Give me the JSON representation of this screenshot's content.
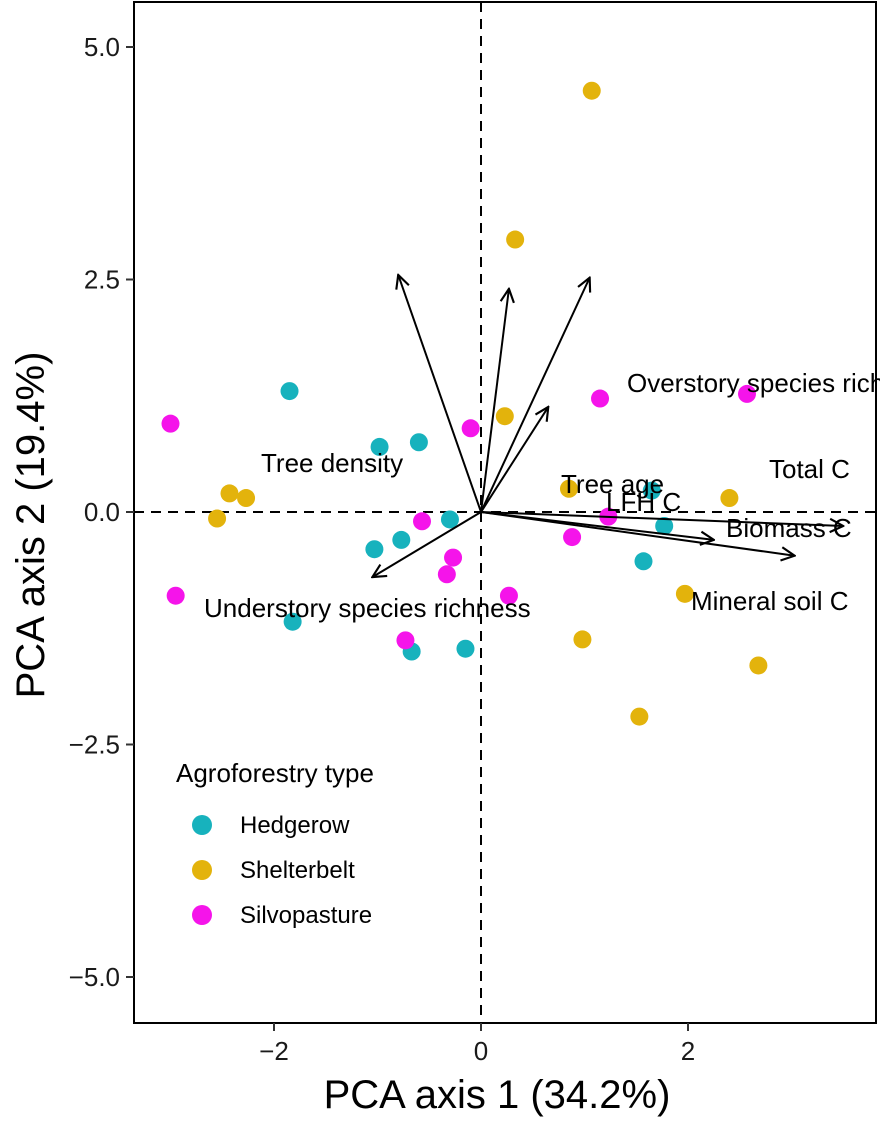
{
  "chart_data": {
    "type": "scatter",
    "subtype": "pca-biplot",
    "xlabel": "PCA axis 1 (34.2%)",
    "ylabel": "PCA axis 2 (19.4%)",
    "xlim": [
      -3.3,
      3.7
    ],
    "ylim": [
      -5.5,
      5.5
    ],
    "xticks": [
      -2,
      0,
      2
    ],
    "xtick_labels": [
      "−2",
      "0",
      "2"
    ],
    "yticks": [
      5.0,
      2.5,
      0.0,
      -2.5,
      -5.0
    ],
    "ytick_labels": [
      "5.0",
      "2.5",
      "0.0",
      "−2.5",
      "−5.0"
    ],
    "grid": false,
    "reference_lines": {
      "x": 0,
      "y": 0,
      "style": "dashed"
    },
    "legend": {
      "title": "Agroforestry type",
      "placement": "bottom-left",
      "entries": [
        {
          "name": "Hedgerow",
          "color": "#17b2bd"
        },
        {
          "name": "Shelterbelt",
          "color": "#e3b30c"
        },
        {
          "name": "Silvopasture",
          "color": "#f514ea"
        }
      ]
    },
    "series": [
      {
        "name": "Hedgerow",
        "color": "#17b2bd",
        "points": [
          {
            "x": -1.85,
            "y": 1.3
          },
          {
            "x": -0.98,
            "y": 0.7
          },
          {
            "x": -0.6,
            "y": 0.75
          },
          {
            "x": -0.3,
            "y": -0.08
          },
          {
            "x": -0.77,
            "y": -0.3
          },
          {
            "x": -1.03,
            "y": -0.4
          },
          {
            "x": -1.82,
            "y": -1.18
          },
          {
            "x": -0.67,
            "y": -1.5
          },
          {
            "x": -0.15,
            "y": -1.47
          },
          {
            "x": 1.65,
            "y": 0.23
          },
          {
            "x": 1.77,
            "y": -0.15
          },
          {
            "x": 1.57,
            "y": -0.53
          }
        ]
      },
      {
        "name": "Shelterbelt",
        "color": "#e3b30c",
        "points": [
          {
            "x": 1.07,
            "y": 4.53
          },
          {
            "x": 0.33,
            "y": 2.93
          },
          {
            "x": 0.23,
            "y": 1.03
          },
          {
            "x": -2.43,
            "y": 0.2
          },
          {
            "x": -2.27,
            "y": 0.15
          },
          {
            "x": -2.55,
            "y": -0.07
          },
          {
            "x": 0.85,
            "y": 0.25
          },
          {
            "x": 2.4,
            "y": 0.15
          },
          {
            "x": 1.97,
            "y": -0.88
          },
          {
            "x": 0.98,
            "y": -1.37
          },
          {
            "x": 2.68,
            "y": -1.65
          },
          {
            "x": 1.53,
            "y": -2.2
          }
        ]
      },
      {
        "name": "Silvopasture",
        "color": "#f514ea",
        "points": [
          {
            "x": -3.0,
            "y": 0.95
          },
          {
            "x": -0.1,
            "y": 0.9
          },
          {
            "x": 1.15,
            "y": 1.22
          },
          {
            "x": 2.57,
            "y": 1.27
          },
          {
            "x": -0.57,
            "y": -0.1
          },
          {
            "x": 1.23,
            "y": -0.05
          },
          {
            "x": 0.88,
            "y": -0.27
          },
          {
            "x": -0.27,
            "y": -0.49
          },
          {
            "x": -0.33,
            "y": -0.67
          },
          {
            "x": -2.95,
            "y": -0.9
          },
          {
            "x": 0.27,
            "y": -0.9
          },
          {
            "x": -0.73,
            "y": -1.38
          }
        ]
      }
    ],
    "loadings": [
      {
        "name": "Tree density",
        "x": -0.8,
        "y": 2.55
      },
      {
        "name": "Overstory species richness",
        "x": 0.27,
        "y": 2.4
      },
      {
        "name": "LFH C",
        "x": 1.05,
        "y": 2.52
      },
      {
        "name": "Tree age",
        "x": 0.65,
        "y": 1.13
      },
      {
        "name": "Total C",
        "x": 3.5,
        "y": -0.15
      },
      {
        "name": "Biomass C",
        "x": 2.25,
        "y": -0.3
      },
      {
        "name": "Mineral soil C",
        "x": 3.03,
        "y": -0.47
      },
      {
        "name": "Understory species richness",
        "x": -1.05,
        "y": -0.7
      }
    ]
  }
}
